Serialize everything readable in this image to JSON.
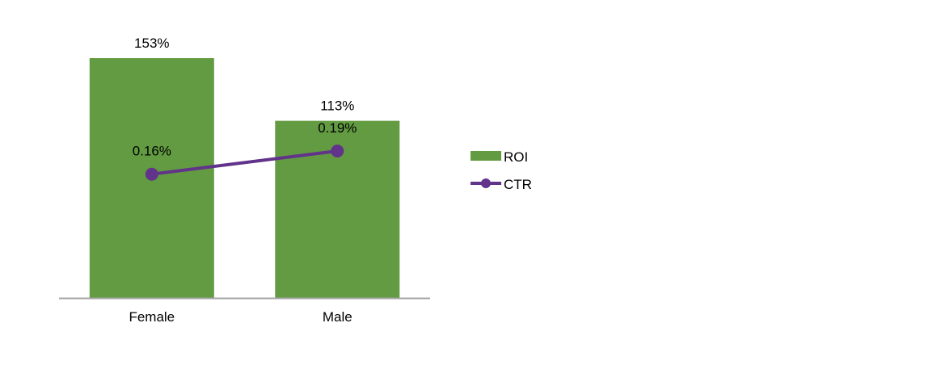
{
  "chart_data": {
    "type": "bar",
    "title": "",
    "xlabel": "",
    "ylabel": "",
    "categories": [
      "Female",
      "Male"
    ],
    "series": [
      {
        "name": "ROI",
        "type": "bar",
        "values": [
          153,
          113
        ],
        "labels": [
          "153%",
          "113%"
        ],
        "color": "#629B41",
        "axis": "primary"
      },
      {
        "name": "CTR",
        "type": "line",
        "values": [
          0.16,
          0.19
        ],
        "labels": [
          "0.16%",
          "0.19%"
        ],
        "color": "#62338A",
        "axis": "secondary"
      }
    ],
    "ylim": [
      0,
      153
    ],
    "y2lim": [
      0,
      0.31
    ],
    "grid": false,
    "legend": "right",
    "axis_color": "#A6A6A6"
  }
}
